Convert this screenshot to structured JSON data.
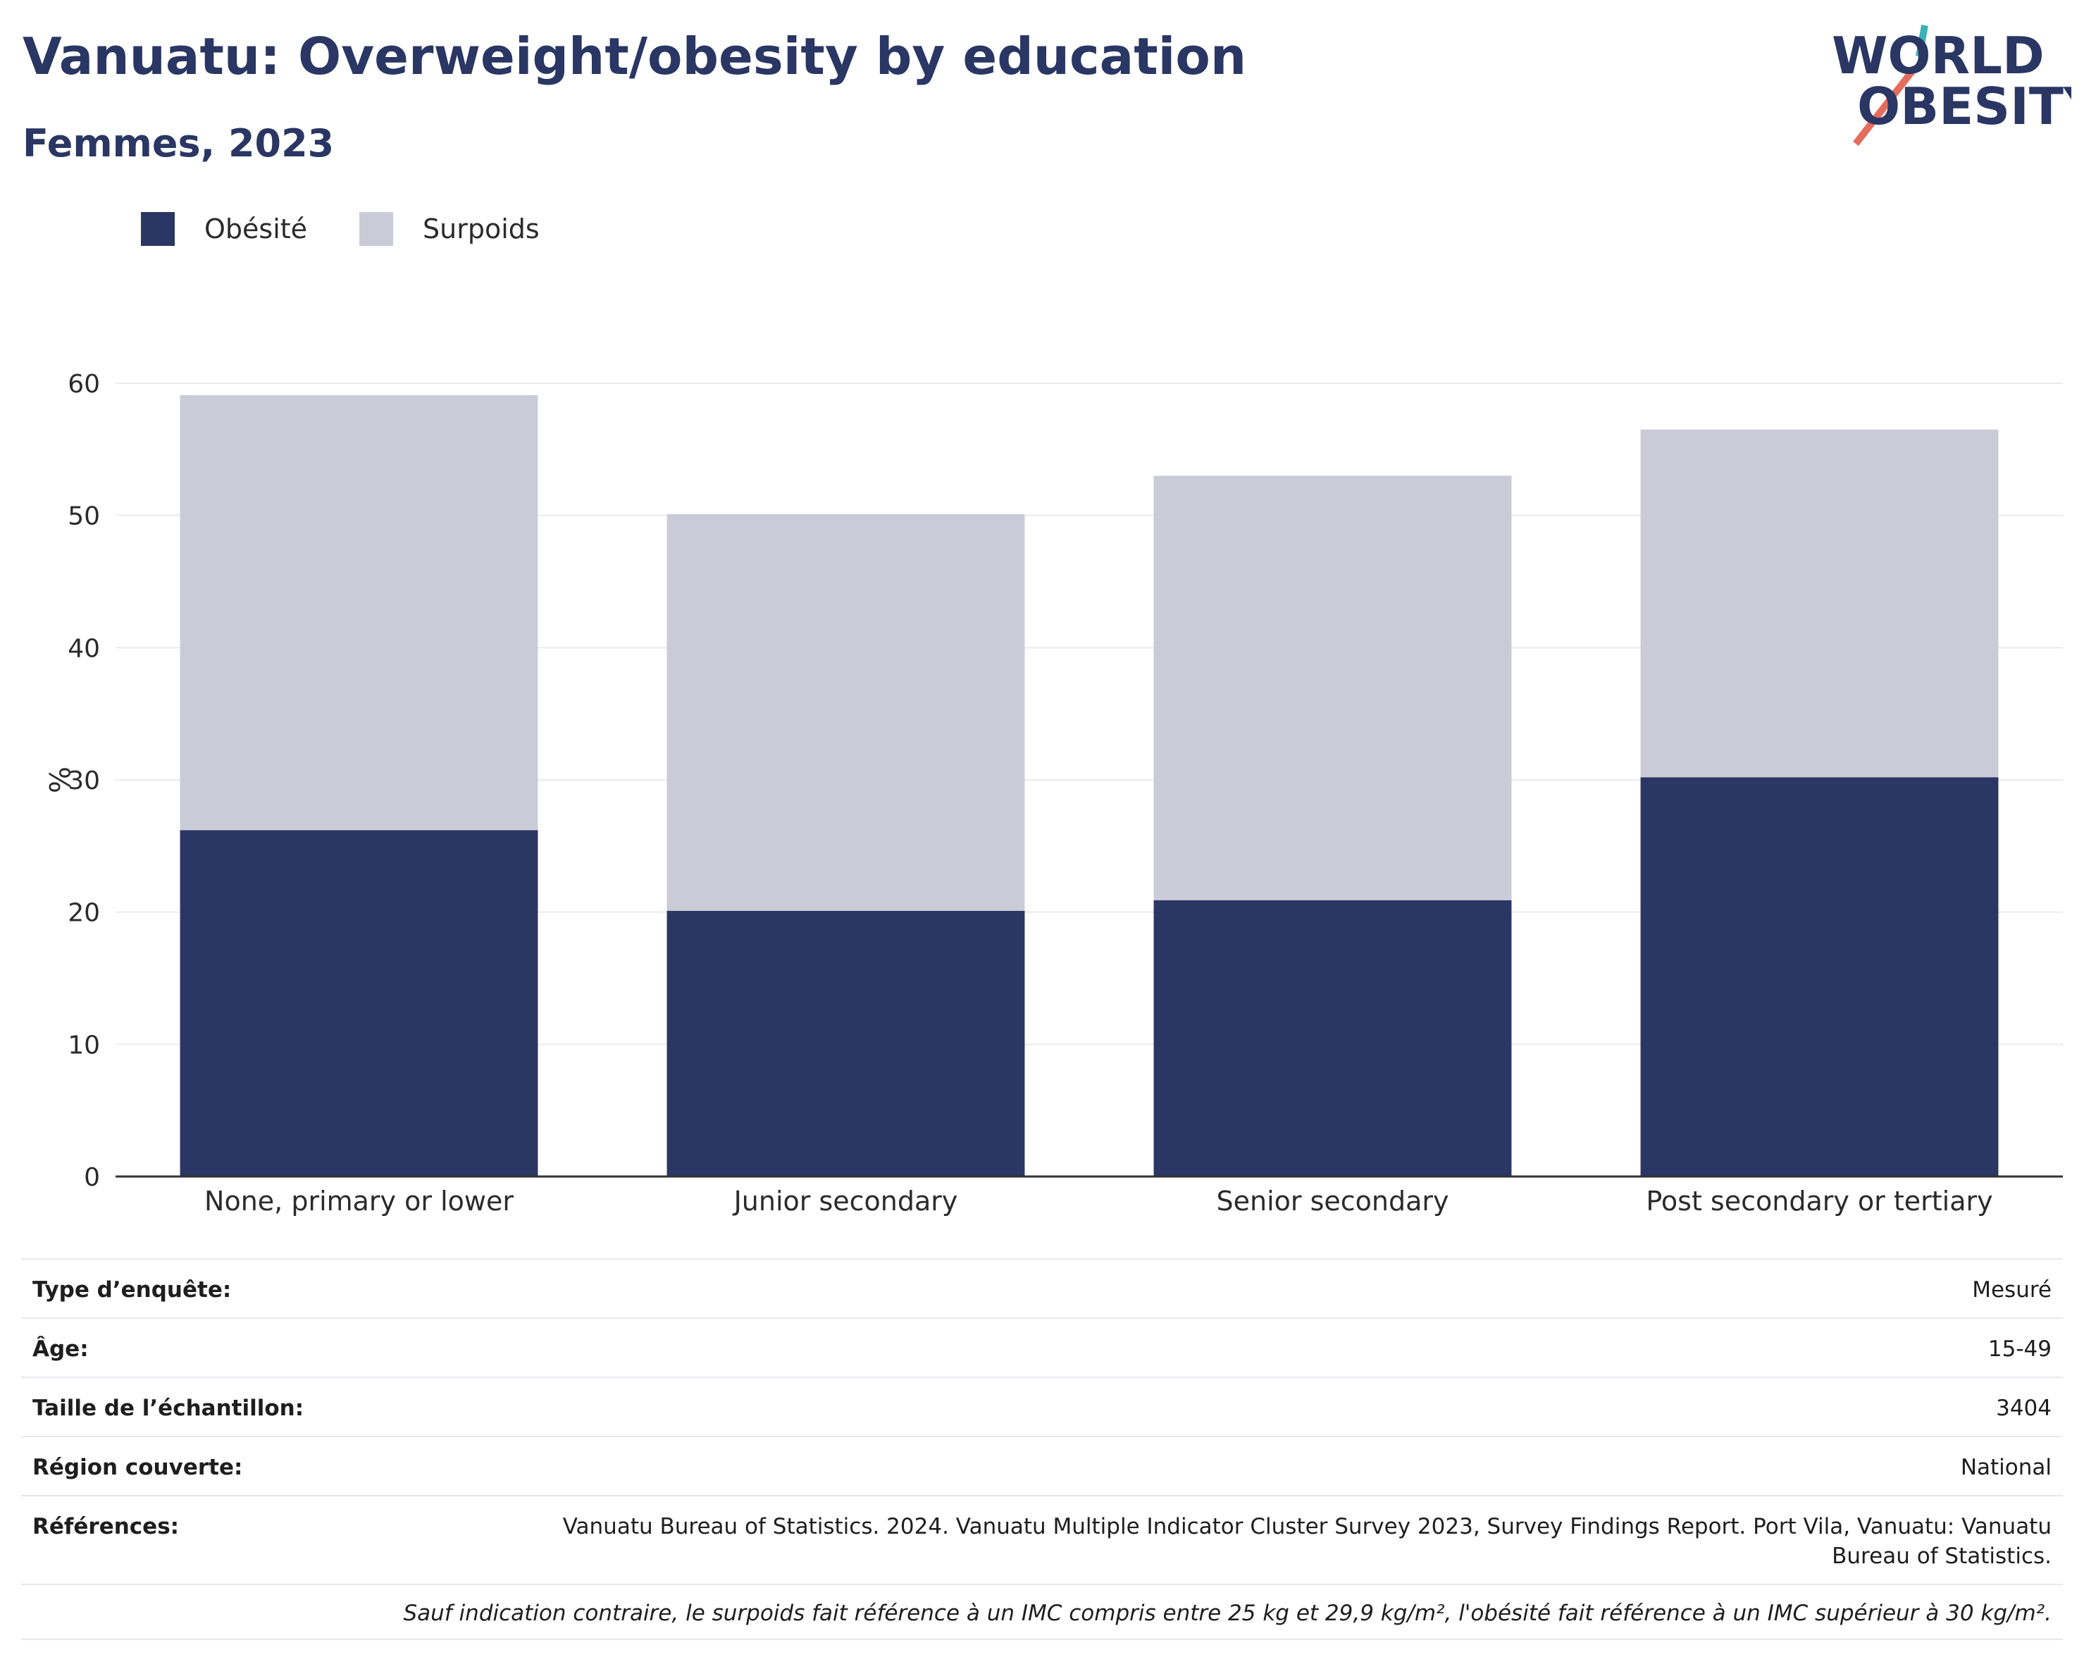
{
  "title": "Vanuatu: Overweight/obesity by education",
  "subtitle": "Femmes, 2023",
  "logo": {
    "line1": "WORLD",
    "line2": "OBESITY"
  },
  "legend": [
    {
      "label": "Obésité",
      "color": "#2a3663"
    },
    {
      "label": "Surpoids",
      "color": "#cacbd7"
    }
  ],
  "chart_data": {
    "type": "bar",
    "stacked": true,
    "categories": [
      "None, primary or lower",
      "Junior secondary",
      "Senior secondary",
      "Post secondary or tertiary"
    ],
    "series": [
      {
        "name": "Obésité",
        "color": "#2a3663",
        "values": [
          26.2,
          20.1,
          20.9,
          30.2
        ]
      },
      {
        "name": "Surpoids",
        "color": "#cacbd7",
        "values": [
          32.9,
          30.0,
          32.1,
          26.3
        ]
      }
    ],
    "ylabel": "%",
    "ylim": [
      0,
      60
    ],
    "yticks": [
      0,
      10,
      20,
      30,
      40,
      50,
      60
    ],
    "grid": true,
    "legend_position": "top-left"
  },
  "meta": {
    "rows": [
      {
        "label": "Type d’enquête:",
        "value": "Mesuré"
      },
      {
        "label": "Âge:",
        "value": "15-49"
      },
      {
        "label": "Taille de l’échantillon:",
        "value": "3404"
      },
      {
        "label": "Région couverte:",
        "value": "National"
      },
      {
        "label": "Références:",
        "value": "Vanuatu Bureau of Statistics. 2024. Vanuatu Multiple Indicator Cluster Survey 2023, Survey Findings Report. Port Vila, Vanuatu: Vanuatu Bureau of Statistics."
      }
    ],
    "note": "Sauf indication contraire, le surpoids fait référence à un IMC compris entre 25 kg et 29,9 kg/m², l'obésité fait référence à un IMC supérieur à 30 kg/m²."
  }
}
